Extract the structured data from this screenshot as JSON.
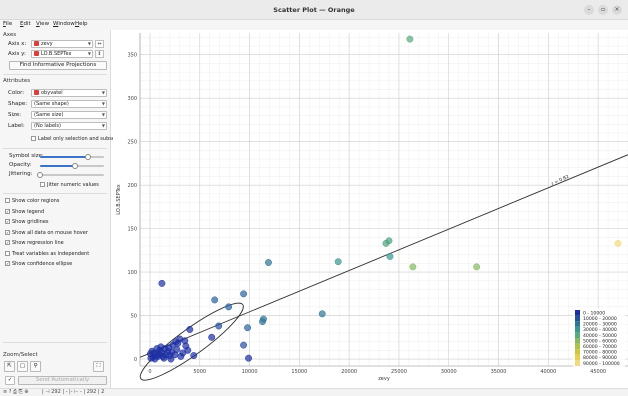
{
  "window": {
    "title": "Scatter Plot — Orange",
    "minimize": "–",
    "maximize": "▫",
    "close": "×"
  },
  "menu": [
    "File",
    "Edit",
    "View",
    "Window",
    "Help"
  ],
  "axes": {
    "section": "Axes",
    "x_label": "Axis x:",
    "x_value": "zevy",
    "y_label": "Axis y:",
    "y_value": "LO.B.SEPTex",
    "swap_symbol": "⇔",
    "swap_y_symbol": "⇕",
    "find_button": "Find Informative Projections"
  },
  "attributes": {
    "section": "Attributes",
    "color_label": "Color:",
    "color_value": "obyvatel",
    "shape_label": "Shape:",
    "shape_value": "(Same shape)",
    "size_label": "Size:",
    "size_value": "(Same size)",
    "label_label": "Label:",
    "label_value": "(No labels)",
    "label_only": "Label only selection and subset"
  },
  "sliders": {
    "symbol_size_label": "Symbol size:",
    "symbol_size": 0.75,
    "opacity_label": "Opacity:",
    "opacity": 0.55,
    "jittering_label": "Jittering:",
    "jittering": 0.0,
    "jitter_numeric": "Jitter numeric values"
  },
  "options": [
    {
      "label": "Show color regions",
      "checked": false
    },
    {
      "label": "Show legend",
      "checked": true
    },
    {
      "label": "Show gridlines",
      "checked": true
    },
    {
      "label": "Show all data on mouse hover",
      "checked": true
    },
    {
      "label": "Show regression line",
      "checked": true
    },
    {
      "label": "Treat variables as independent",
      "checked": false
    },
    {
      "label": "Show confidence ellipse",
      "checked": true
    }
  ],
  "zoom": {
    "section": "Zoom/Select",
    "send_auto": "Send Automatically",
    "check": "✓"
  },
  "status": {
    "icons": "≡ ? ⎙ ⎘ ⊕",
    "counts": "|  ⊣ 292 | - |-  ⊢ - | 292 | 2"
  },
  "colors": {
    "regression": "#333333",
    "ellipse": "#333333",
    "grid": "#e6e6e6"
  },
  "chart_data": {
    "type": "scatter",
    "xlabel": "zevy",
    "ylabel": "LO.B.SEPTex",
    "xlim": [
      -1000,
      48000
    ],
    "ylim": [
      -8,
      375
    ],
    "xticks": [
      0,
      5000,
      10000,
      15000,
      20000,
      25000,
      30000,
      35000,
      40000,
      45000
    ],
    "yticks": [
      0,
      50,
      100,
      150,
      200,
      250,
      300,
      350
    ],
    "regression_label": "r = 0.82",
    "regression_line": {
      "x0": -1000,
      "y0": 2,
      "x1": 48000,
      "y1": 235
    },
    "ellipse": {
      "cx": 4200,
      "cy": 20,
      "note": "95% confidence ellipse, steep rotation"
    },
    "legend": {
      "labels": [
        "0 - 10000",
        "10000 - 20000",
        "20000 - 30000",
        "30000 - 40000",
        "40000 - 50000",
        "50000 - 60000",
        "60000 - 70000",
        "70000 - 80000",
        "80000 - 90000",
        "90000 - 100000"
      ],
      "colors": [
        "#1c2fa3",
        "#24539c",
        "#2d7596",
        "#3a9690",
        "#57aa7c",
        "#85b964",
        "#aec34c",
        "#cfc83d",
        "#e7cf52",
        "#f1dc7b"
      ]
    },
    "points": [
      {
        "x": 26100,
        "y": 368,
        "c": "#57aa7c"
      },
      {
        "x": 47000,
        "y": 133,
        "c": "#f1dc7b"
      },
      {
        "x": 24000,
        "y": 136,
        "c": "#4ca17f"
      },
      {
        "x": 23700,
        "y": 133,
        "c": "#4ca17f"
      },
      {
        "x": 24100,
        "y": 118,
        "c": "#3a9690"
      },
      {
        "x": 26400,
        "y": 106,
        "c": "#85b964"
      },
      {
        "x": 32800,
        "y": 106,
        "c": "#85b964"
      },
      {
        "x": 18900,
        "y": 112,
        "c": "#3a9690"
      },
      {
        "x": 11900,
        "y": 111,
        "c": "#2d7596"
      },
      {
        "x": 17300,
        "y": 52,
        "c": "#2d7596"
      },
      {
        "x": 11400,
        "y": 46,
        "c": "#2d7596"
      },
      {
        "x": 11300,
        "y": 43,
        "c": "#2d7596"
      },
      {
        "x": 9400,
        "y": 75,
        "c": "#2a62a0"
      },
      {
        "x": 6500,
        "y": 68,
        "c": "#2a62a0"
      },
      {
        "x": 7900,
        "y": 60,
        "c": "#2a62a0"
      },
      {
        "x": 1200,
        "y": 87,
        "c": "#1c2fa3"
      },
      {
        "x": 9800,
        "y": 36,
        "c": "#2a62a0"
      },
      {
        "x": 6900,
        "y": 38,
        "c": "#264fa1"
      },
      {
        "x": 9400,
        "y": 16,
        "c": "#264fa1"
      },
      {
        "x": 9900,
        "y": 1,
        "c": "#1c2fa3"
      },
      {
        "x": 6200,
        "y": 25,
        "c": "#1c2fa3"
      },
      {
        "x": 4000,
        "y": 34,
        "c": "#1c2fa3"
      },
      {
        "x": 3000,
        "y": 23,
        "c": "#1c2fa3"
      },
      {
        "x": 3600,
        "y": 15,
        "c": "#1c2fa3"
      },
      {
        "x": 2700,
        "y": 11,
        "c": "#1c2fa3"
      },
      {
        "x": 2300,
        "y": 16,
        "c": "#1c2fa3"
      },
      {
        "x": 1800,
        "y": 9,
        "c": "#1c2fa3"
      },
      {
        "x": 1500,
        "y": 12,
        "c": "#1c2fa3"
      },
      {
        "x": 1200,
        "y": 7,
        "c": "#1c2fa3"
      },
      {
        "x": 900,
        "y": 5,
        "c": "#1c2fa3"
      },
      {
        "x": 600,
        "y": 4,
        "c": "#1c2fa3"
      },
      {
        "x": 300,
        "y": 2,
        "c": "#1c2fa3"
      },
      {
        "x": 100,
        "y": 1,
        "c": "#1c2fa3"
      },
      {
        "x": 400,
        "y": 7,
        "c": "#1c2fa3"
      },
      {
        "x": 800,
        "y": 3,
        "c": "#1c2fa3"
      },
      {
        "x": 1000,
        "y": 10,
        "c": "#1c2fa3"
      },
      {
        "x": 1300,
        "y": 3,
        "c": "#1c2fa3"
      },
      {
        "x": 1600,
        "y": 5,
        "c": "#1c2fa3"
      },
      {
        "x": 2000,
        "y": 4,
        "c": "#1c2fa3"
      },
      {
        "x": 2200,
        "y": 8,
        "c": "#1c2fa3"
      },
      {
        "x": 2500,
        "y": 5,
        "c": "#1c2fa3"
      },
      {
        "x": 2800,
        "y": 18,
        "c": "#1c2fa3"
      },
      {
        "x": 3300,
        "y": 7,
        "c": "#1c2fa3"
      },
      {
        "x": 3800,
        "y": 10,
        "c": "#1c2fa3"
      },
      {
        "x": 4400,
        "y": 4,
        "c": "#1c2fa3"
      },
      {
        "x": 200,
        "y": 9,
        "c": "#1c2fa3"
      },
      {
        "x": 700,
        "y": 12,
        "c": "#1c2fa3"
      },
      {
        "x": 1100,
        "y": 14,
        "c": "#1c2fa3"
      },
      {
        "x": 1900,
        "y": 13,
        "c": "#1c2fa3"
      },
      {
        "x": 2600,
        "y": 20,
        "c": "#1c2fa3"
      },
      {
        "x": 3100,
        "y": 3,
        "c": "#1c2fa3"
      },
      {
        "x": 500,
        "y": 0,
        "c": "#1c2fa3"
      },
      {
        "x": 1400,
        "y": 1,
        "c": "#1c2fa3"
      },
      {
        "x": 2100,
        "y": 0,
        "c": "#1c2fa3"
      },
      {
        "x": 50,
        "y": 6,
        "c": "#1c2fa3"
      },
      {
        "x": 3500,
        "y": 21,
        "c": "#1c2fa3"
      }
    ]
  }
}
